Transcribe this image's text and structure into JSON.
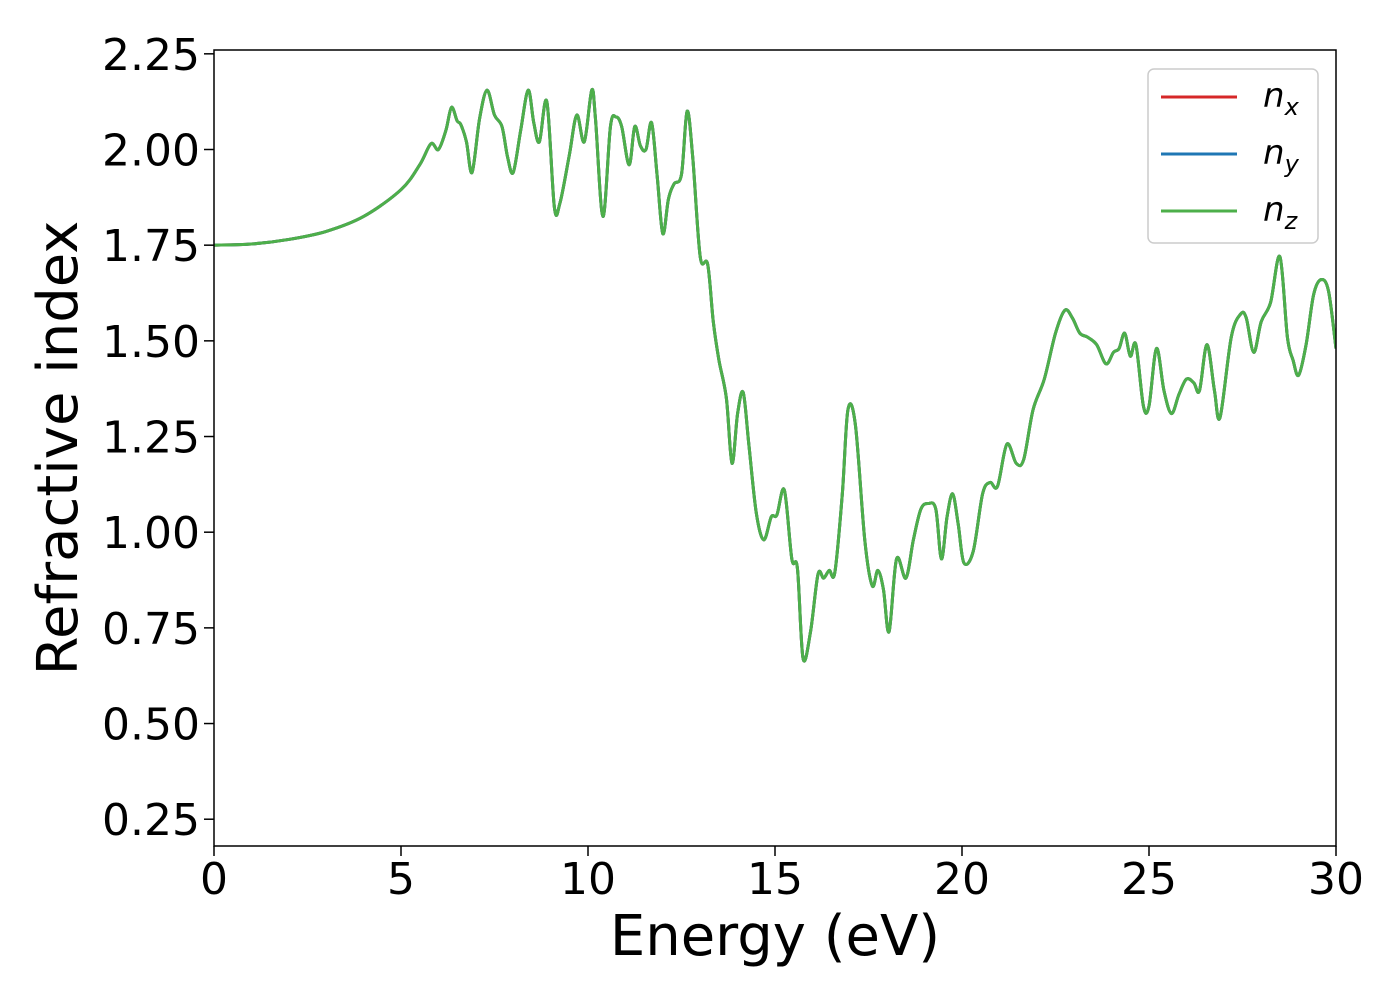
{
  "chart_data": {
    "type": "line",
    "title": "",
    "xlabel": "Energy (eV)",
    "ylabel": "Refractive index",
    "xlim": [
      0,
      30
    ],
    "ylim": [
      0.18,
      2.26
    ],
    "xticks": [
      0,
      5,
      10,
      15,
      20,
      25,
      30
    ],
    "yticks": [
      0.25,
      0.5,
      0.75,
      1.0,
      1.25,
      1.5,
      1.75,
      2.0,
      2.25
    ],
    "ytick_labels": [
      "0.25",
      "0.50",
      "0.75",
      "1.00",
      "1.25",
      "1.50",
      "1.75",
      "2.00",
      "2.25"
    ],
    "grid": false,
    "legend_position": "top-right",
    "series": [
      {
        "name": "n",
        "subscript": "x",
        "color": "#d62728"
      },
      {
        "name": "n",
        "subscript": "y",
        "color": "#1f77b4"
      },
      {
        "name": "n",
        "subscript": "z",
        "color": "#4daf4a"
      }
    ],
    "x": [
      0,
      1,
      2,
      3,
      4,
      5,
      5.5,
      5.8,
      6.0,
      6.2,
      6.35,
      6.5,
      6.6,
      6.75,
      6.9,
      7.1,
      7.3,
      7.5,
      7.7,
      7.85,
      8.0,
      8.2,
      8.4,
      8.55,
      8.7,
      8.9,
      9.1,
      9.25,
      9.5,
      9.7,
      9.9,
      10.1,
      10.2,
      10.4,
      10.6,
      10.75,
      10.9,
      11.1,
      11.25,
      11.4,
      11.55,
      11.7,
      11.85,
      12.0,
      12.15,
      12.3,
      12.5,
      12.65,
      12.8,
      13.0,
      13.2,
      13.35,
      13.5,
      13.7,
      13.85,
      14.0,
      14.15,
      14.3,
      14.5,
      14.7,
      14.9,
      15.05,
      15.25,
      15.45,
      15.6,
      15.75,
      15.95,
      16.15,
      16.3,
      16.45,
      16.6,
      16.8,
      16.95,
      17.15,
      17.4,
      17.6,
      17.75,
      17.9,
      18.05,
      18.25,
      18.5,
      18.7,
      18.9,
      19.1,
      19.3,
      19.45,
      19.6,
      19.75,
      19.9,
      20.05,
      20.3,
      20.55,
      20.75,
      20.95,
      21.2,
      21.45,
      21.65,
      21.9,
      22.2,
      22.5,
      22.75,
      22.95,
      23.15,
      23.35,
      23.6,
      23.85,
      24.05,
      24.2,
      24.35,
      24.5,
      24.65,
      24.85,
      25.0,
      25.2,
      25.4,
      25.6,
      25.8,
      26.0,
      26.2,
      26.35,
      26.55,
      26.75,
      26.9,
      27.2,
      27.45,
      27.6,
      27.8,
      28.0,
      28.25,
      28.5,
      28.7,
      28.85,
      29.0,
      29.2,
      29.4,
      29.6,
      29.8,
      30.0
    ],
    "values": [
      1.75,
      1.753,
      1.765,
      1.786,
      1.825,
      1.895,
      1.96,
      2.015,
      2.0,
      2.05,
      2.11,
      2.075,
      2.065,
      2.02,
      1.94,
      2.08,
      2.155,
      2.09,
      2.06,
      1.98,
      1.94,
      2.05,
      2.155,
      2.07,
      2.02,
      2.125,
      1.85,
      1.86,
      1.985,
      2.09,
      2.02,
      2.155,
      2.08,
      1.825,
      2.06,
      2.085,
      2.06,
      1.96,
      2.06,
      2.01,
      2.0,
      2.07,
      1.93,
      1.78,
      1.87,
      1.91,
      1.935,
      2.1,
      1.98,
      1.72,
      1.7,
      1.55,
      1.45,
      1.35,
      1.18,
      1.31,
      1.365,
      1.23,
      1.05,
      0.98,
      1.04,
      1.045,
      1.11,
      0.93,
      0.905,
      0.67,
      0.74,
      0.89,
      0.88,
      0.9,
      0.895,
      1.1,
      1.32,
      1.28,
      0.98,
      0.86,
      0.9,
      0.85,
      0.74,
      0.93,
      0.88,
      0.98,
      1.06,
      1.075,
      1.06,
      0.93,
      1.04,
      1.1,
      1.02,
      0.92,
      0.95,
      1.1,
      1.13,
      1.12,
      1.23,
      1.18,
      1.19,
      1.32,
      1.4,
      1.52,
      1.58,
      1.56,
      1.52,
      1.51,
      1.49,
      1.44,
      1.47,
      1.48,
      1.52,
      1.46,
      1.49,
      1.33,
      1.33,
      1.48,
      1.37,
      1.31,
      1.36,
      1.4,
      1.39,
      1.37,
      1.49,
      1.37,
      1.3,
      1.51,
      1.57,
      1.56,
      1.47,
      1.55,
      1.6,
      1.72,
      1.51,
      1.45,
      1.41,
      1.49,
      1.62,
      1.66,
      1.63,
      1.48
    ]
  }
}
